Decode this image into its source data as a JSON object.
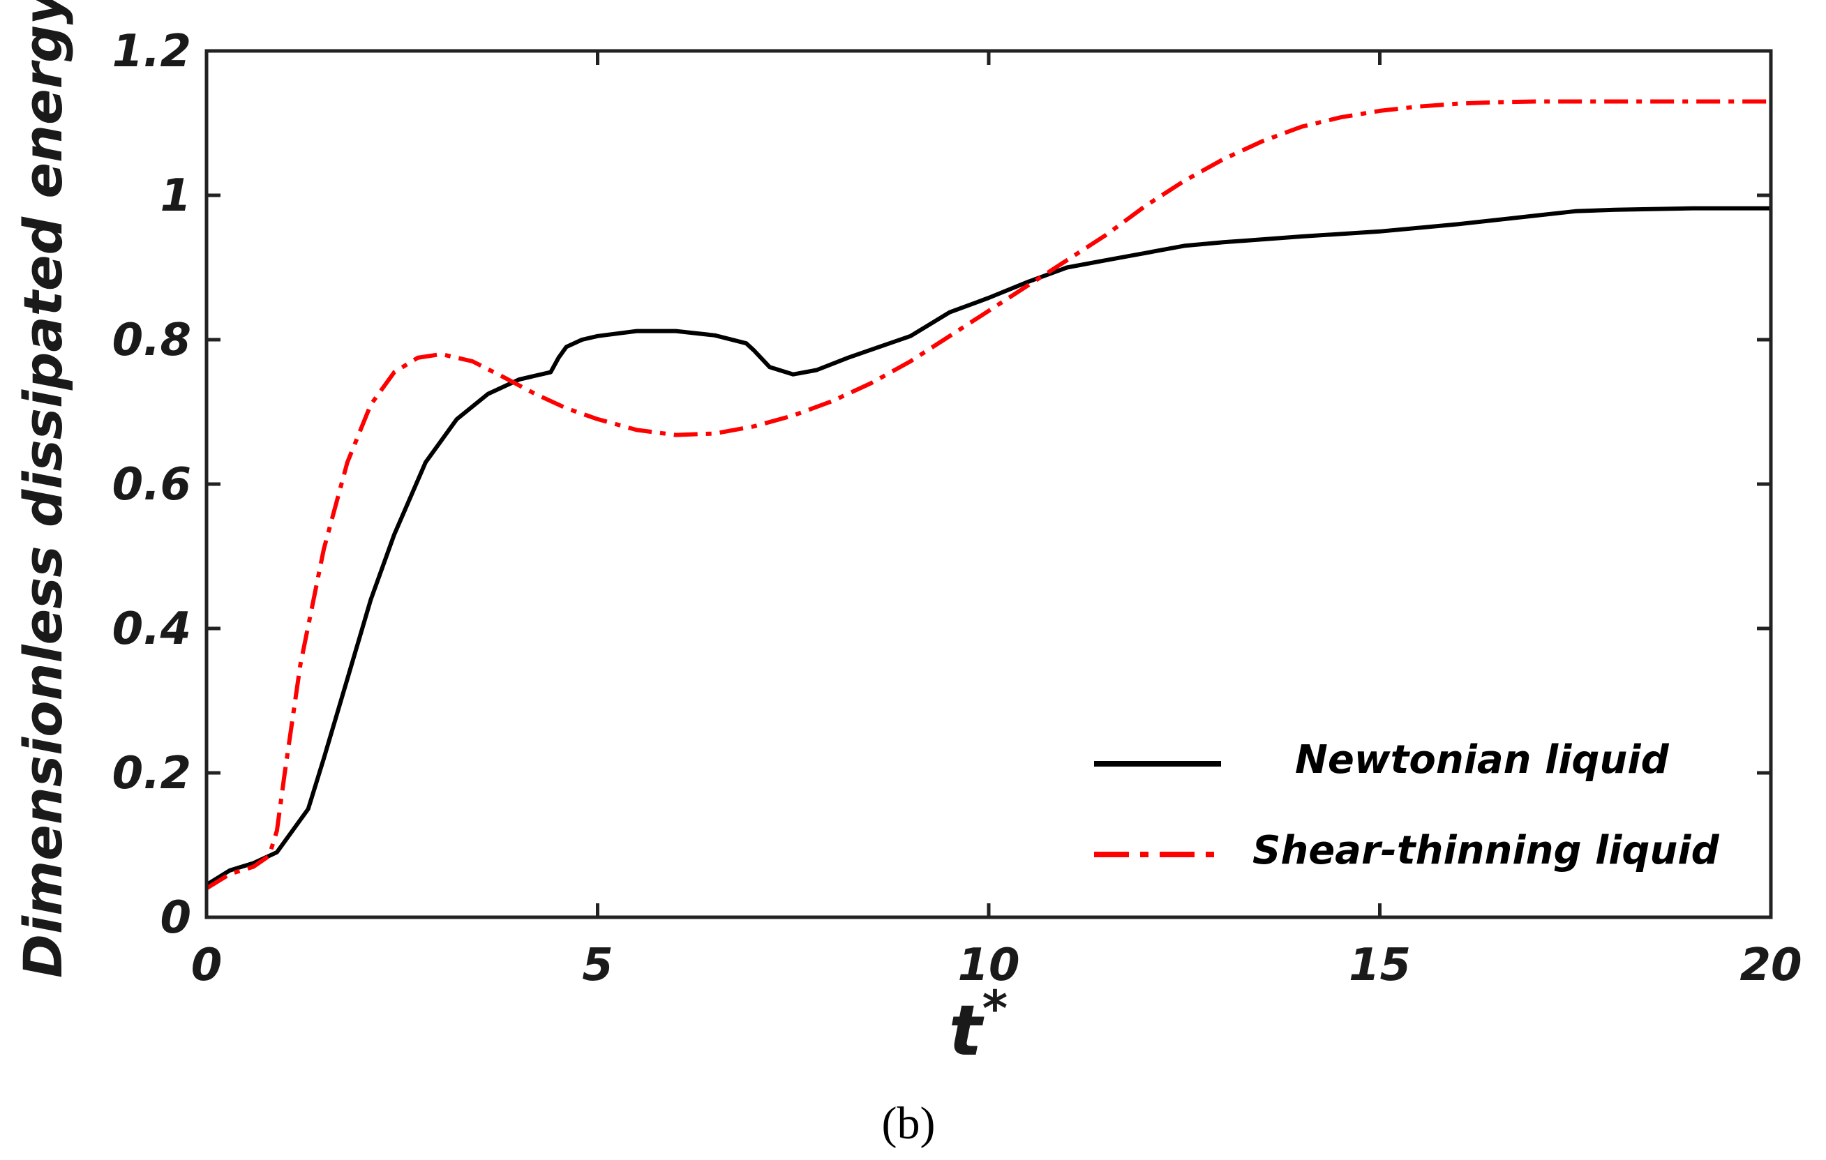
{
  "chart_data": {
    "type": "line",
    "title": "",
    "xlabel": "t",
    "xlabel_superscript": "*",
    "ylabel": "Dimensionless dissipated energy",
    "xlim": [
      0,
      20
    ],
    "ylim": [
      0,
      1.2
    ],
    "xticks": [
      0,
      5,
      10,
      15,
      20
    ],
    "xtick_labels": [
      "0",
      "5",
      "10",
      "15",
      "20"
    ],
    "yticks": [
      0,
      0.2,
      0.4,
      0.6,
      0.8,
      1,
      1.2
    ],
    "ytick_labels": [
      "0",
      "0.2",
      "0.4",
      "0.6",
      "0.8",
      "1",
      "1.2"
    ],
    "grid": false,
    "legend_position": "lower-right",
    "series": [
      {
        "name": "Newtonian liquid",
        "color": "#000000",
        "style": "solid",
        "x": [
          0,
          0.3,
          0.6,
          0.9,
          1.1,
          1.3,
          1.5,
          1.8,
          2.1,
          2.4,
          2.8,
          3.2,
          3.6,
          4.0,
          4.4,
          4.5,
          4.6,
          4.8,
          5.0,
          5.5,
          6.0,
          6.5,
          6.9,
          7.0,
          7.2,
          7.5,
          7.8,
          8.2,
          8.6,
          9.0,
          9.5,
          10.0,
          10.5,
          11.0,
          11.5,
          12.0,
          12.5,
          13.0,
          14.0,
          15.0,
          16.0,
          17.0,
          17.5,
          18.0,
          19.0,
          20.0
        ],
        "y": [
          0.045,
          0.065,
          0.075,
          0.09,
          0.12,
          0.15,
          0.22,
          0.33,
          0.44,
          0.53,
          0.63,
          0.69,
          0.725,
          0.745,
          0.755,
          0.775,
          0.79,
          0.8,
          0.805,
          0.812,
          0.812,
          0.806,
          0.795,
          0.785,
          0.762,
          0.752,
          0.758,
          0.775,
          0.79,
          0.805,
          0.838,
          0.858,
          0.88,
          0.9,
          0.91,
          0.92,
          0.93,
          0.935,
          0.943,
          0.95,
          0.96,
          0.972,
          0.978,
          0.98,
          0.982,
          0.982
        ]
      },
      {
        "name": "Shear-thinning liquid",
        "color": "#ff0000",
        "style": "dashdot",
        "x": [
          0,
          0.3,
          0.6,
          0.8,
          0.9,
          1.0,
          1.2,
          1.5,
          1.8,
          2.1,
          2.4,
          2.7,
          3.0,
          3.4,
          3.8,
          4.2,
          4.6,
          5.0,
          5.5,
          6.0,
          6.5,
          7.0,
          7.5,
          8.0,
          8.5,
          9.0,
          9.5,
          10.0,
          10.5,
          11.0,
          11.5,
          12.0,
          12.5,
          13.0,
          13.5,
          14.0,
          14.5,
          15.0,
          15.5,
          16.0,
          16.5,
          17.0,
          18.0,
          19.0,
          20.0
        ],
        "y": [
          0.04,
          0.06,
          0.07,
          0.085,
          0.12,
          0.2,
          0.35,
          0.51,
          0.63,
          0.71,
          0.755,
          0.775,
          0.78,
          0.77,
          0.748,
          0.725,
          0.705,
          0.69,
          0.675,
          0.668,
          0.67,
          0.68,
          0.695,
          0.715,
          0.74,
          0.77,
          0.805,
          0.84,
          0.875,
          0.91,
          0.945,
          0.985,
          1.02,
          1.05,
          1.075,
          1.095,
          1.108,
          1.117,
          1.123,
          1.127,
          1.129,
          1.13,
          1.13,
          1.13,
          1.13
        ]
      }
    ],
    "caption": "(b)"
  }
}
